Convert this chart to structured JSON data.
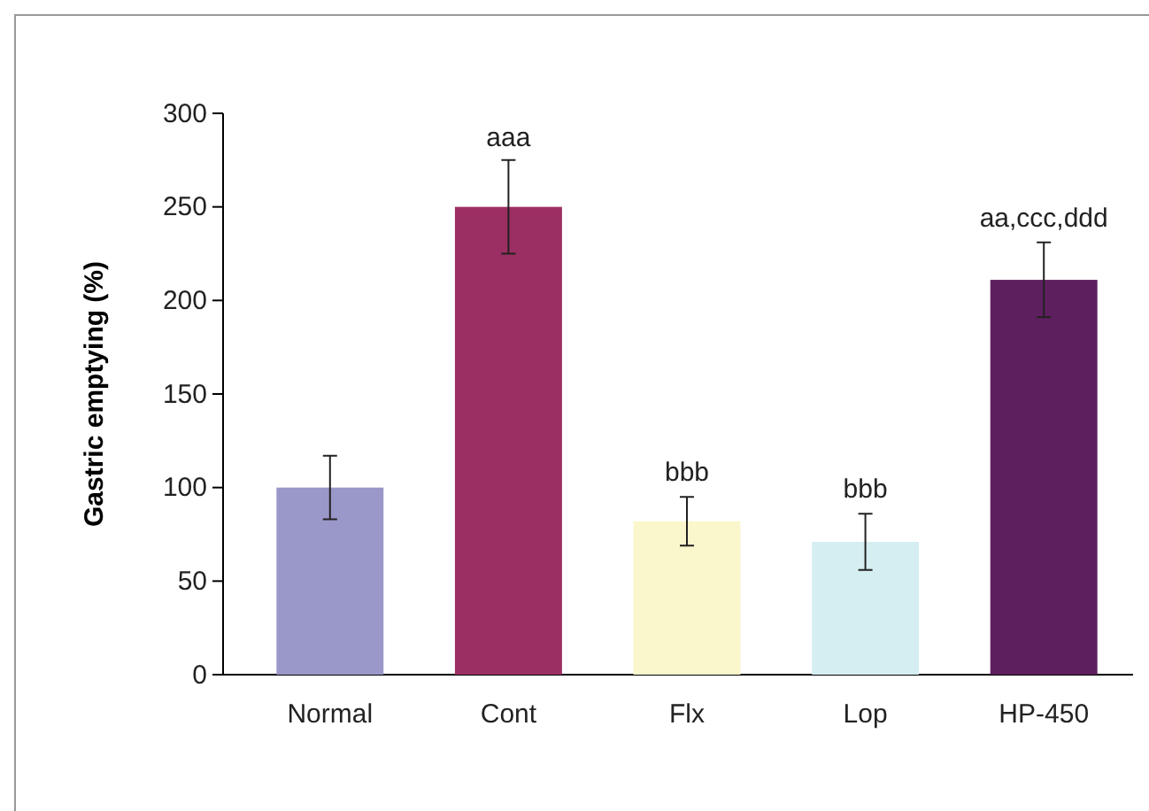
{
  "chart_data": {
    "type": "bar",
    "ylabel": "Gastric emptying (%)",
    "categories": [
      "Normal",
      "Cont",
      "Flx",
      "Lop",
      "HP-450"
    ],
    "values": [
      100,
      250,
      82,
      71,
      211
    ],
    "errors": [
      17,
      25,
      13,
      15,
      20
    ],
    "colors": [
      "#9a97c9",
      "#9b2f63",
      "#faf7cc",
      "#d5eef2",
      "#5e1f5f"
    ],
    "ylim": [
      0,
      300
    ],
    "yticks": [
      0,
      50,
      100,
      150,
      200,
      250,
      300
    ],
    "grid": false,
    "annotations": [
      {
        "text": "aaa",
        "x": "Cont",
        "y": 275
      },
      {
        "text": "bbb",
        "x": "Flx",
        "y": 96
      },
      {
        "text": "bbb",
        "x": "Lop",
        "y": 87
      },
      {
        "text": "aa,ccc,ddd",
        "x": "HP-450",
        "y": 232
      }
    ]
  }
}
